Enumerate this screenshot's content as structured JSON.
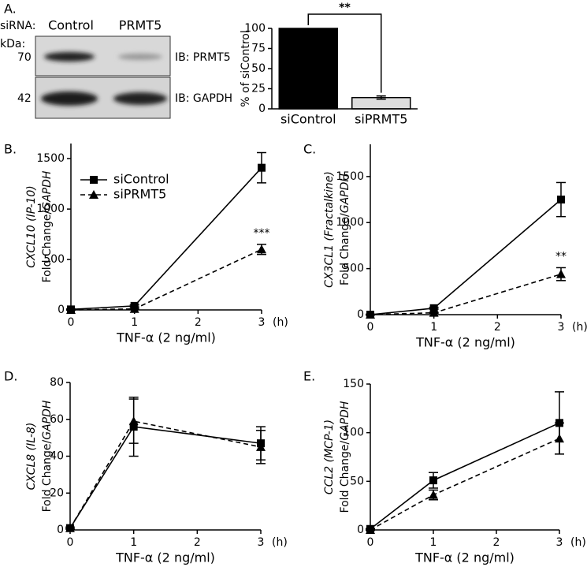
{
  "blot": {
    "panel": "A.",
    "siRNA_label": "siRNA:",
    "lanes": [
      "Control",
      "PRMT5"
    ],
    "unit": "kDa:",
    "markers": [
      "70",
      "42"
    ],
    "blots": [
      "IB: PRMT5",
      "IB: GAPDH"
    ]
  },
  "chart_data": [
    {
      "type": "bar",
      "ylabel": "% of siControl",
      "categories": [
        "siControl",
        "siPRMT5"
      ],
      "values": [
        100,
        14
      ],
      "errors": [
        null,
        2
      ],
      "colors": [
        "#000000",
        "#dddddd"
      ],
      "ylim": [
        0,
        100
      ],
      "yticks": [
        0,
        25,
        50,
        75,
        100
      ],
      "annotation": "**"
    },
    {
      "type": "line",
      "panel": "B.",
      "ylabel": "CXCL10 (IP-10)",
      "ylabel2": [
        "Fold Change/",
        "GAPDH"
      ],
      "xlabel": "TNF-α (2 ng/ml)",
      "xunit": "(h)",
      "x": [
        0,
        1,
        3
      ],
      "xlim": [
        0,
        3
      ],
      "xticks": [
        0,
        1,
        2,
        3
      ],
      "ylim": [
        0,
        1650
      ],
      "yticks": [
        0,
        500,
        1000,
        1500
      ],
      "legend": true,
      "series": [
        {
          "name": "siControl",
          "marker": "square",
          "line_style": "solid",
          "values": [
            5,
            40,
            1410
          ],
          "errors": [
            5,
            10,
            150
          ]
        },
        {
          "name": "siPRMT5",
          "marker": "triangle",
          "line_style": "dashed",
          "values": [
            0,
            10,
            600
          ],
          "errors": [
            3,
            5,
            50
          ]
        }
      ],
      "annotation": "***"
    },
    {
      "type": "line",
      "panel": "C.",
      "ylabel": "CX3CL1 (Fractalkine)",
      "ylabel2": [
        "Fold Change/",
        "GAPDH"
      ],
      "xlabel": "TNF-α (2 ng/ml)",
      "xunit": "(h)",
      "x": [
        0,
        1,
        3
      ],
      "xlim": [
        0,
        3
      ],
      "xticks": [
        0,
        1,
        2,
        3
      ],
      "ylim": [
        0,
        1850
      ],
      "yticks": [
        0,
        500,
        1000,
        1500
      ],
      "legend": false,
      "series": [
        {
          "marker": "square",
          "line_style": "solid",
          "values": [
            0,
            70,
            1250
          ],
          "errors": [
            5,
            10,
            185
          ]
        },
        {
          "marker": "triangle",
          "line_style": "dashed",
          "values": [
            0,
            20,
            440
          ],
          "errors": [
            3,
            5,
            70
          ]
        }
      ],
      "annotation": "**"
    },
    {
      "type": "line",
      "panel": "D.",
      "ylabel": "CXCL8 (IL-8)",
      "ylabel2": [
        "Fold Change/",
        "GAPDH"
      ],
      "xlabel": "TNF-α (2 ng/ml)",
      "xunit": "(h)",
      "x": [
        0,
        1,
        3
      ],
      "xlim": [
        0,
        3
      ],
      "xticks": [
        0,
        1,
        2,
        3
      ],
      "ylim": [
        0,
        80
      ],
      "yticks": [
        0,
        20,
        40,
        60,
        80
      ],
      "legend": false,
      "series": [
        {
          "marker": "square",
          "line_style": "solid",
          "values": [
            1,
            56,
            47
          ],
          "errors": [
            0.5,
            16,
            9
          ]
        },
        {
          "marker": "triangle",
          "line_style": "dashed",
          "values": [
            1,
            59,
            45
          ],
          "errors": [
            0.5,
            12,
            9
          ]
        }
      ]
    },
    {
      "type": "line",
      "panel": "E.",
      "ylabel": "CCL2 (MCP-1)",
      "ylabel2": [
        "Fold Change/",
        "GAPDH"
      ],
      "xlabel": "TNF-α (2 ng/ml)",
      "xunit": "(h)",
      "x": [
        0,
        1,
        3
      ],
      "xlim": [
        0,
        3
      ],
      "xticks": [
        0,
        1,
        2,
        3
      ],
      "ylim": [
        0,
        150
      ],
      "yticks": [
        0,
        50,
        100,
        150
      ],
      "legend": false,
      "series": [
        {
          "marker": "square",
          "line_style": "solid",
          "values": [
            1,
            51,
            110
          ],
          "errors": [
            0.5,
            8,
            32
          ]
        },
        {
          "marker": "triangle",
          "line_style": "dashed",
          "values": [
            0,
            36,
            94
          ],
          "errors": [
            0.5,
            5,
            16
          ]
        }
      ]
    }
  ]
}
